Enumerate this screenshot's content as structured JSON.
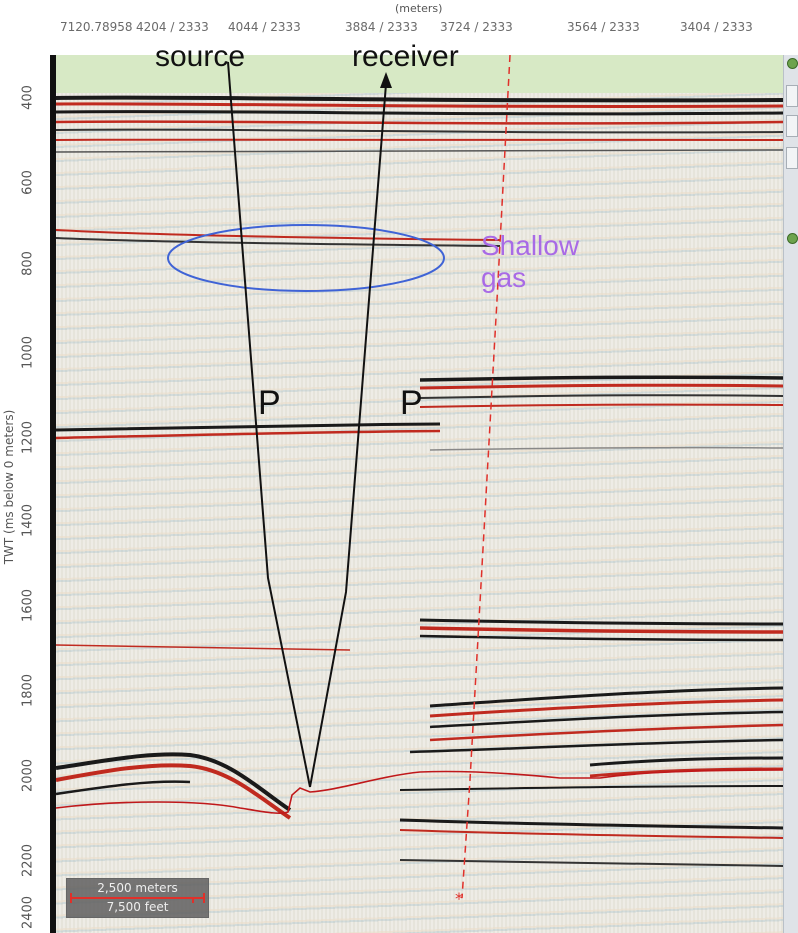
{
  "top_axis": {
    "title": "(meters)",
    "ticks": [
      "7120.78958",
      "4204 / 2333",
      "4044 / 2333",
      "3884 / 2333",
      "3724 / 2333",
      "3564 / 2333",
      "3404 / 2333"
    ]
  },
  "y_axis": {
    "title": "TWT (ms below 0 meters)",
    "ticks": [
      "400",
      "600",
      "800",
      "1000",
      "1200",
      "1400",
      "1600",
      "1800",
      "2000",
      "2200",
      "2400"
    ]
  },
  "annotations": {
    "source": "source",
    "receiver": "receiver",
    "p_left": "P",
    "p_right": "P",
    "shallow_gas_line1": "Shallow",
    "shallow_gas_line2": "gas"
  },
  "scale_bar": {
    "meters": "2,500 meters",
    "feet": "7,500 feet"
  },
  "colors": {
    "reflector_red": "#c02a1f",
    "reflector_dark": "#1a1a1a",
    "ellipse": "#3f63d6",
    "gas_label": "#a86ae6",
    "well_path": "#e0302a"
  }
}
